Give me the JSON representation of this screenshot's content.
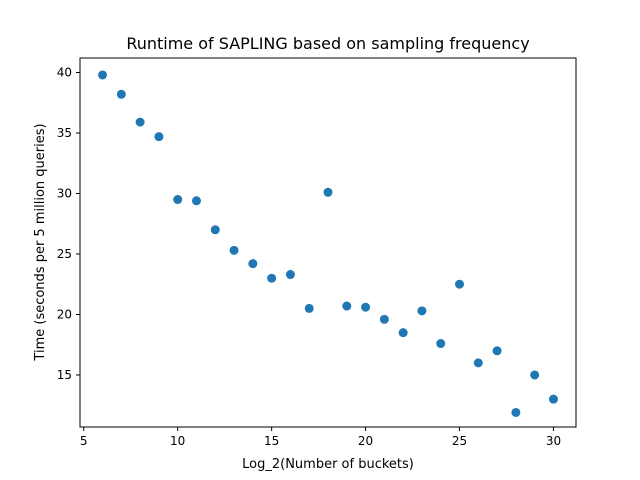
{
  "chart_data": {
    "type": "scatter",
    "title": "Runtime of SAPLING based on sampling frequency",
    "xlabel": "Log_2(Number of buckets)",
    "ylabel": "Time (seconds per 5 million queries)",
    "xlim": [
      4.8,
      31.2
    ],
    "ylim": [
      10.7,
      41.2
    ],
    "xticks": [
      5,
      10,
      15,
      20,
      25,
      30
    ],
    "yticks": [
      15,
      20,
      25,
      30,
      35,
      40
    ],
    "grid": false,
    "series": [
      {
        "color": "#1f77b4",
        "points": [
          {
            "x": 6,
            "y": 39.8
          },
          {
            "x": 7,
            "y": 38.2
          },
          {
            "x": 8,
            "y": 35.9
          },
          {
            "x": 9,
            "y": 34.7
          },
          {
            "x": 10,
            "y": 29.5
          },
          {
            "x": 11,
            "y": 29.4
          },
          {
            "x": 12,
            "y": 27.0
          },
          {
            "x": 13,
            "y": 25.3
          },
          {
            "x": 14,
            "y": 24.2
          },
          {
            "x": 15,
            "y": 23.0
          },
          {
            "x": 16,
            "y": 23.3
          },
          {
            "x": 17,
            "y": 20.5
          },
          {
            "x": 18,
            "y": 30.1
          },
          {
            "x": 19,
            "y": 20.7
          },
          {
            "x": 20,
            "y": 20.6
          },
          {
            "x": 21,
            "y": 19.6
          },
          {
            "x": 22,
            "y": 18.5
          },
          {
            "x": 23,
            "y": 20.3
          },
          {
            "x": 24,
            "y": 17.6
          },
          {
            "x": 25,
            "y": 22.5
          },
          {
            "x": 26,
            "y": 16.0
          },
          {
            "x": 27,
            "y": 17.0
          },
          {
            "x": 28,
            "y": 11.9
          },
          {
            "x": 29,
            "y": 15.0
          },
          {
            "x": 30,
            "y": 13.0
          }
        ]
      }
    ]
  }
}
